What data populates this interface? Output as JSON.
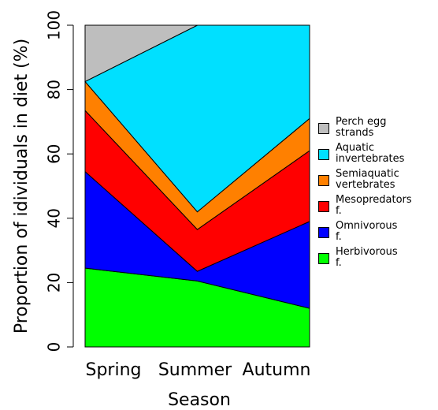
{
  "chart_data": {
    "type": "stacked-area",
    "x_label": "Season",
    "y_label": "Proportion of idividuals in diet (%)",
    "categories": [
      "Spring",
      "Summer",
      "Autumn"
    ],
    "ylim": [
      0,
      100
    ],
    "yticks": [
      0,
      20,
      40,
      60,
      80,
      100
    ],
    "series": [
      {
        "name": "Herbivorous f.",
        "color": "#00ff00",
        "values": [
          24.5,
          20.5,
          12
        ]
      },
      {
        "name": "Omnivorous f.",
        "color": "#0000ff",
        "values": [
          30,
          3,
          27
        ]
      },
      {
        "name": "Mesopredators f.",
        "color": "#ff0000",
        "values": [
          19,
          13,
          22
        ]
      },
      {
        "name": "Semiaquatic vertebrates",
        "color": "#ff8000",
        "values": [
          9,
          5.5,
          10
        ]
      },
      {
        "name": "Aquatic invertebrates",
        "color": "#00e0ff",
        "values": [
          0,
          58,
          29
        ]
      },
      {
        "name": "Perch egg strands",
        "color": "#bebebe",
        "values": [
          17.5,
          0,
          0
        ]
      }
    ]
  }
}
